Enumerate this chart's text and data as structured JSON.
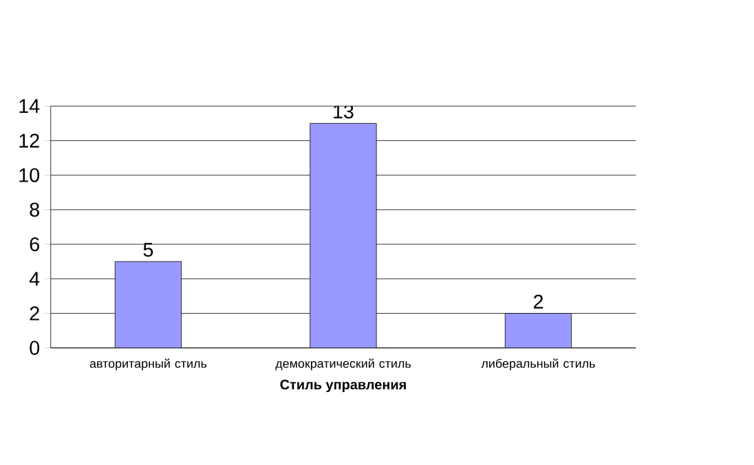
{
  "chart_data": {
    "type": "bar",
    "xlabel": "Стиль управления",
    "categories": [
      "авторитарный стиль",
      "демократический стиль",
      "либеральный стиль"
    ],
    "values": [
      5,
      13,
      2
    ],
    "color": "#9999ff",
    "ylim": [
      0,
      14
    ],
    "yticks": [
      0,
      2,
      4,
      6,
      8,
      10,
      12,
      14
    ],
    "grid": "y",
    "data_labels": true
  }
}
